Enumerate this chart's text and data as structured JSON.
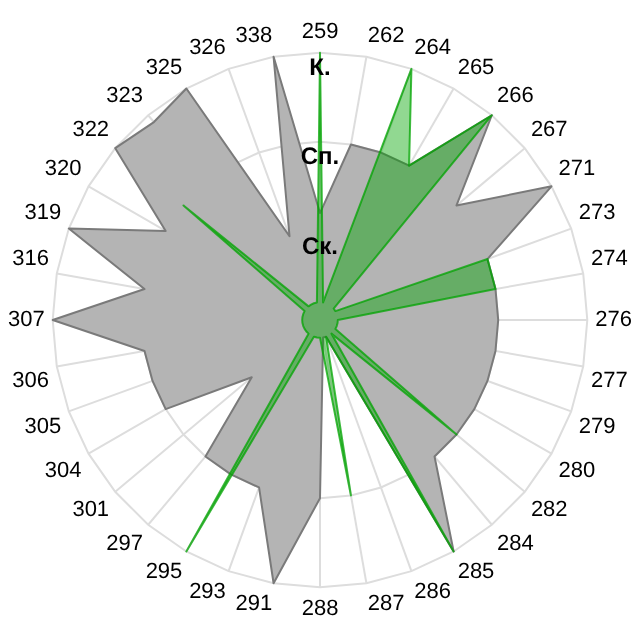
{
  "chart_data": {
    "type": "radar",
    "categories": [
      "259",
      "262",
      "264",
      "265",
      "266",
      "267",
      "271",
      "273",
      "274",
      "276",
      "277",
      "279",
      "280",
      "282",
      "284",
      "285",
      "286",
      "287",
      "288",
      "291",
      "293",
      "295",
      "297",
      "301",
      "304",
      "305",
      "306",
      "307",
      "316",
      "319",
      "320",
      "322",
      "323",
      "325",
      "326",
      "338"
    ],
    "ylim": [
      0,
      3
    ],
    "yticks": [
      {
        "value": 1,
        "label": "Ск."
      },
      {
        "value": 2,
        "label": "Сп."
      },
      {
        "value": 3,
        "label": "К."
      }
    ],
    "grid": true,
    "legend": false,
    "marker": "none",
    "series": [
      {
        "color": "#b4b4b4",
        "values": [
          1.2,
          2,
          2,
          2,
          3,
          2,
          3,
          2,
          2,
          2,
          2,
          2,
          2,
          2,
          2,
          3,
          0.2,
          0.2,
          2,
          3,
          2,
          2,
          2,
          1,
          2,
          2,
          2,
          3,
          2,
          3,
          2,
          3,
          2.9,
          3,
          1,
          3
        ]
      },
      {
        "color": "#00a400",
        "values": [
          3,
          0.2,
          3,
          2,
          3,
          0.2,
          0.2,
          2,
          2,
          0.2,
          0.2,
          0.2,
          0.2,
          2,
          0.2,
          3,
          0.2,
          2,
          0.2,
          0.2,
          0.2,
          3,
          0.2,
          0.2,
          0.2,
          0.2,
          0.2,
          0.2,
          0.2,
          0.2,
          0.2,
          2,
          0.2,
          0.2,
          0.2,
          0.2
        ]
      }
    ]
  }
}
